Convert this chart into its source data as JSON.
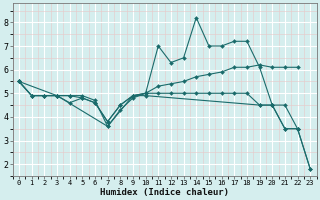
{
  "xlabel": "Humidex (Indice chaleur)",
  "bg_color": "#d5eeee",
  "line_color": "#1a6b6b",
  "grid_color": "#ffffff",
  "grid_minor_color": "#e8d8d8",
  "xlim": [
    -0.5,
    23.5
  ],
  "ylim": [
    1.5,
    8.8
  ],
  "yticks": [
    2,
    3,
    4,
    5,
    6,
    7,
    8
  ],
  "xticks": [
    0,
    1,
    2,
    3,
    4,
    5,
    6,
    7,
    8,
    9,
    10,
    11,
    12,
    13,
    14,
    15,
    16,
    17,
    18,
    19,
    20,
    21,
    22,
    23
  ],
  "series": [
    {
      "x": [
        0,
        1,
        2,
        3,
        4,
        5,
        6,
        7,
        8,
        9,
        10,
        11,
        12,
        13,
        14,
        15,
        16,
        17,
        18,
        19,
        20,
        21,
        22
      ],
      "y": [
        5.5,
        4.9,
        4.9,
        4.9,
        4.9,
        4.8,
        4.6,
        3.8,
        4.5,
        4.9,
        5.0,
        5.3,
        5.4,
        5.5,
        5.7,
        5.8,
        5.9,
        6.1,
        6.1,
        6.2,
        6.1,
        6.1,
        6.1
      ]
    },
    {
      "x": [
        0,
        1,
        2,
        3,
        4,
        5,
        6,
        7,
        8,
        9,
        10,
        11,
        12,
        13,
        14,
        15,
        16,
        17,
        18,
        19,
        20,
        21,
        22,
        23
      ],
      "y": [
        5.5,
        4.9,
        4.9,
        4.9,
        4.9,
        4.9,
        4.7,
        3.6,
        4.3,
        4.8,
        5.0,
        7.0,
        6.3,
        6.5,
        8.2,
        7.0,
        7.0,
        7.2,
        7.2,
        6.1,
        4.5,
        3.5,
        3.5,
        1.8
      ]
    },
    {
      "x": [
        0,
        1,
        2,
        3,
        4,
        5,
        6,
        7,
        8,
        9,
        10,
        11,
        12,
        13,
        14,
        15,
        16,
        17,
        18,
        19,
        20,
        21,
        22
      ],
      "y": [
        5.5,
        4.9,
        4.9,
        4.9,
        4.6,
        4.8,
        4.6,
        3.8,
        4.5,
        4.9,
        5.0,
        5.0,
        5.0,
        5.0,
        5.0,
        5.0,
        5.0,
        5.0,
        5.0,
        4.5,
        4.5,
        4.5,
        3.5
      ]
    },
    {
      "x": [
        0,
        3,
        7,
        9,
        10,
        19,
        20,
        21,
        22,
        23
      ],
      "y": [
        5.5,
        4.9,
        3.6,
        4.9,
        4.9,
        4.5,
        4.5,
        3.5,
        3.5,
        1.8
      ]
    }
  ]
}
